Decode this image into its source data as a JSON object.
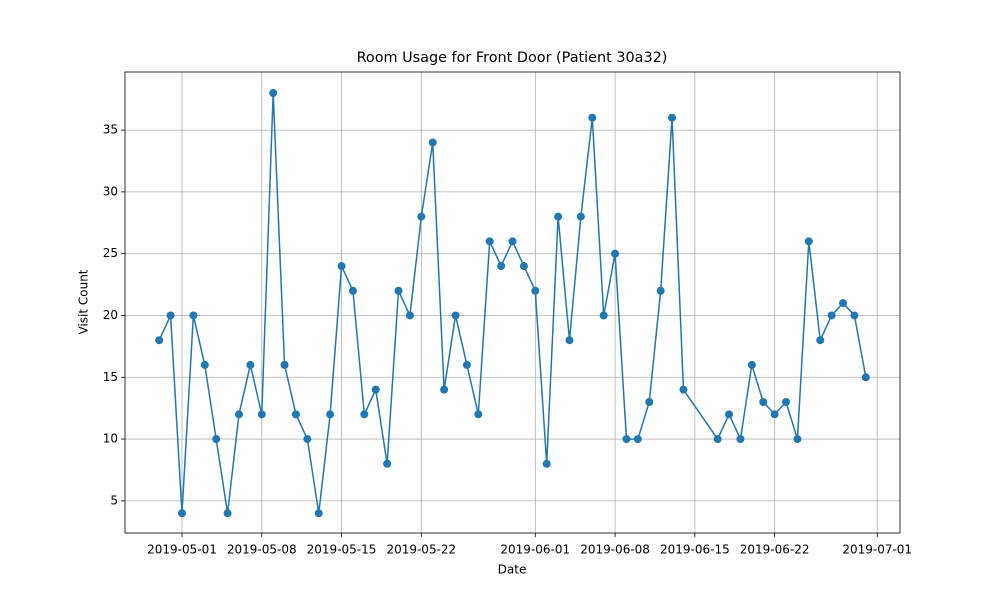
{
  "chart_data": {
    "type": "line",
    "title": "Room Usage for Front Door (Patient 30a32)",
    "x_label": "Date",
    "y_label": "Visit Count",
    "color": "#1f77b4",
    "grid": true,
    "x": [
      "2019-04-29",
      "2019-04-30",
      "2019-05-01",
      "2019-05-02",
      "2019-05-03",
      "2019-05-04",
      "2019-05-05",
      "2019-05-06",
      "2019-05-07",
      "2019-05-08",
      "2019-05-09",
      "2019-05-10",
      "2019-05-11",
      "2019-05-12",
      "2019-05-13",
      "2019-05-14",
      "2019-05-15",
      "2019-05-16",
      "2019-05-17",
      "2019-05-18",
      "2019-05-19",
      "2019-05-20",
      "2019-05-21",
      "2019-05-22",
      "2019-05-23",
      "2019-05-24",
      "2019-05-25",
      "2019-05-26",
      "2019-05-27",
      "2019-05-28",
      "2019-05-29",
      "2019-05-30",
      "2019-05-31",
      "2019-06-01",
      "2019-06-02",
      "2019-06-03",
      "2019-06-04",
      "2019-06-05",
      "2019-06-06",
      "2019-06-07",
      "2019-06-08",
      "2019-06-09",
      "2019-06-10",
      "2019-06-11",
      "2019-06-12",
      "2019-06-13",
      "2019-06-14",
      "2019-06-17",
      "2019-06-18",
      "2019-06-19",
      "2019-06-20",
      "2019-06-21",
      "2019-06-22",
      "2019-06-23",
      "2019-06-24",
      "2019-06-25",
      "2019-06-26",
      "2019-06-27",
      "2019-06-28",
      "2019-06-29",
      "2019-06-30"
    ],
    "values": [
      18,
      20,
      4,
      20,
      16,
      10,
      4,
      12,
      16,
      12,
      38,
      16,
      12,
      10,
      4,
      12,
      24,
      22,
      12,
      14,
      8,
      22,
      20,
      28,
      34,
      14,
      20,
      16,
      12,
      26,
      24,
      26,
      24,
      22,
      8,
      28,
      18,
      28,
      36,
      20,
      25,
      10,
      10,
      13,
      22,
      36,
      14,
      10,
      12,
      10,
      16,
      13,
      12,
      13,
      10,
      26,
      18,
      20,
      21,
      20,
      15
    ],
    "xlim": [
      "2019-04-26",
      "2019-07-03"
    ],
    "xticks": [
      "2019-05-01",
      "2019-05-08",
      "2019-05-15",
      "2019-05-22",
      "2019-06-01",
      "2019-06-08",
      "2019-06-15",
      "2019-06-22",
      "2019-07-01"
    ],
    "ylim": [
      2.4,
      39.7
    ],
    "yticks": [
      5,
      10,
      15,
      20,
      25,
      30,
      35
    ]
  }
}
